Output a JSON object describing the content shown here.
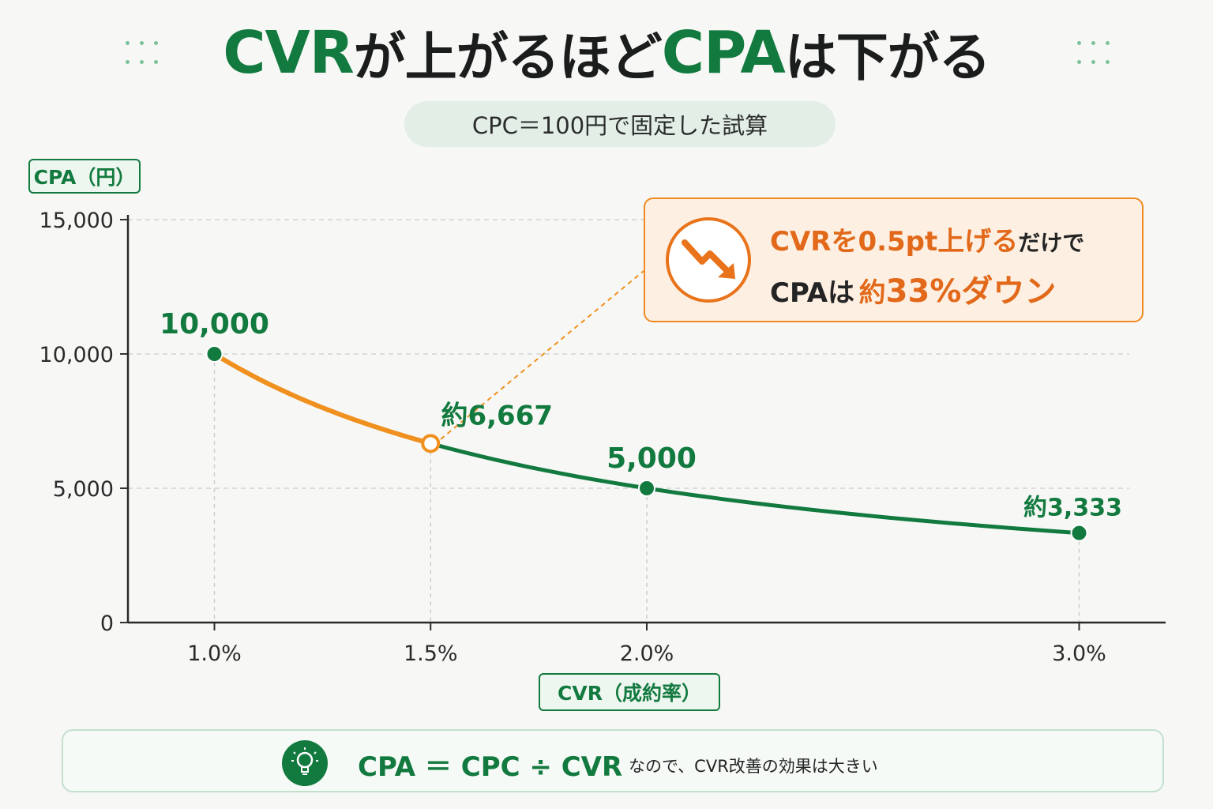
{
  "title": {
    "part1": "CVR",
    "part2": "が上がるほど",
    "part3": "CPA",
    "part4": "は下がる"
  },
  "subtitle": "CPC＝100円で固定した試算",
  "callout": {
    "line1_a": "CVRを0.5pt上げる",
    "line1_b": "だけで",
    "line2_a": "CPAは",
    "line2_b": "約",
    "line2_c": "33%ダウン",
    "icon": "trending-down-icon"
  },
  "formula": {
    "equation": "CPA ＝ CPC ÷ CVR",
    "note": "なので、CVR改善の効果は大きい",
    "icon": "lightbulb-icon"
  },
  "colors": {
    "green": "#137a3f",
    "orange": "#f0901e",
    "callout_orange": "#e2691a"
  },
  "chart_data": {
    "type": "line",
    "xlabel": "CVR（成約率）",
    "ylabel": "CPA（円）",
    "x": [
      1.0,
      1.5,
      2.0,
      3.0
    ],
    "x_tick_labels": [
      "1.0%",
      "1.5%",
      "2.0%",
      "3.0%"
    ],
    "ylim": [
      0,
      15000
    ],
    "y_ticks": [
      0,
      5000,
      10000,
      15000
    ],
    "y_tick_labels": [
      "0",
      "5,000",
      "10,000",
      "15,000"
    ],
    "grid": true,
    "series": [
      {
        "values": [
          10000,
          6667,
          5000,
          3333
        ]
      }
    ],
    "point_labels": [
      "10,000",
      "約6,667",
      "5,000",
      "約3,333"
    ],
    "highlight_segment": {
      "from_x": 1.0,
      "to_x": 1.5
    }
  }
}
